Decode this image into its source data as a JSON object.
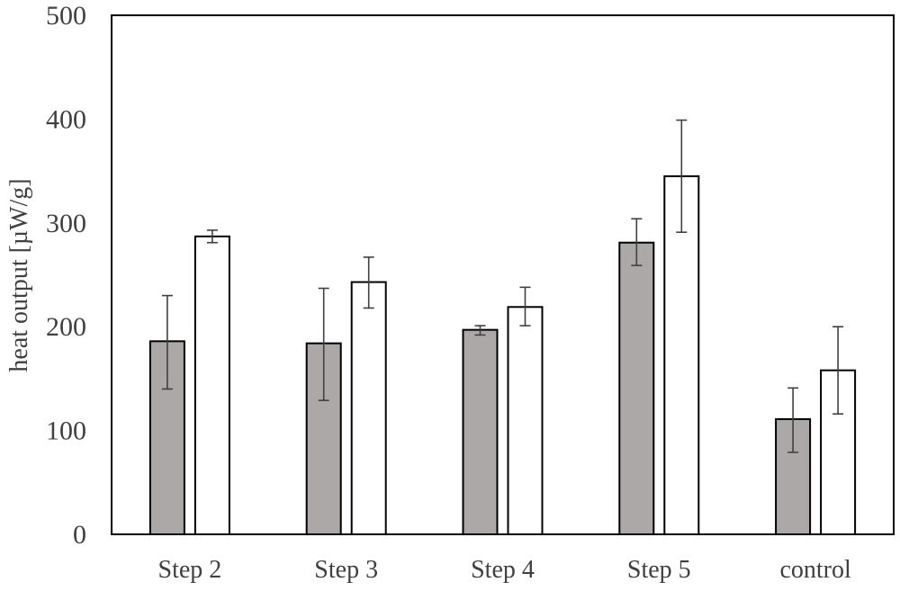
{
  "chart_data": {
    "type": "bar",
    "title": "",
    "xlabel": "",
    "ylabel": "heat output [µW/g]",
    "ylim": [
      0,
      500
    ],
    "yticks": [
      0,
      100,
      200,
      300,
      400,
      500
    ],
    "grid": false,
    "legend": "none",
    "categories": [
      "Step 2",
      "Step 3",
      "Step 4",
      "Step 5",
      "control"
    ],
    "series": [
      {
        "color": "#ada8a8",
        "values": [
          186,
          184,
          197,
          281,
          111
        ],
        "error_low": [
          140,
          129,
          192,
          259,
          79
        ],
        "error_high": [
          230,
          237,
          201,
          304,
          141
        ]
      },
      {
        "color": "#ffffff",
        "values": [
          287,
          243,
          219,
          345,
          158
        ],
        "error_low": [
          281,
          218,
          201,
          291,
          116
        ],
        "error_high": [
          293,
          267,
          238,
          399,
          200
        ]
      }
    ]
  }
}
